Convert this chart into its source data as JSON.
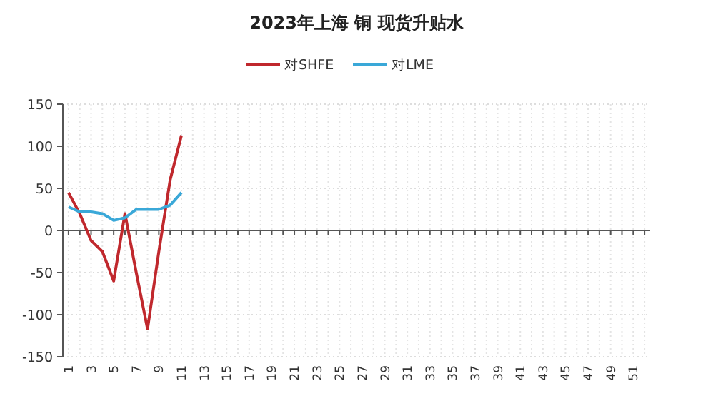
{
  "chart_data": {
    "type": "line",
    "title": "2023年上海 铜 现货升贴水",
    "categories": [
      "1",
      null,
      "3",
      null,
      "5",
      null,
      "7",
      null,
      "9",
      null,
      "11",
      null,
      "13",
      null,
      "15",
      null,
      "17",
      null,
      "19",
      null,
      "21",
      null,
      "23",
      null,
      "25",
      null,
      "27",
      null,
      "29",
      null,
      "31",
      null,
      "33",
      null,
      "35",
      null,
      "37",
      null,
      "39",
      null,
      "41",
      null,
      "43",
      null,
      "45",
      null,
      "47",
      null,
      "49",
      null,
      "51",
      null
    ],
    "series": [
      {
        "name": "对SHFE",
        "color": "#c0282d",
        "values": [
          45,
          20,
          -12,
          -25,
          -60,
          20,
          -50,
          -117,
          -25,
          60,
          113,
          null,
          null,
          null,
          null,
          null,
          null,
          null,
          null,
          null,
          null,
          null,
          null,
          null,
          null,
          null,
          null,
          null,
          null,
          null,
          null,
          null,
          null,
          null,
          null,
          null,
          null,
          null,
          null,
          null,
          null,
          null,
          null,
          null,
          null,
          null,
          null,
          null,
          null,
          null,
          null,
          null
        ]
      },
      {
        "name": "对LME",
        "color": "#3aa8d8",
        "values": [
          28,
          22,
          22,
          20,
          12,
          15,
          25,
          25,
          25,
          30,
          45,
          null,
          null,
          null,
          null,
          null,
          null,
          null,
          null,
          null,
          null,
          null,
          null,
          null,
          null,
          null,
          null,
          null,
          null,
          null,
          null,
          null,
          null,
          null,
          null,
          null,
          null,
          null,
          null,
          null,
          null,
          null,
          null,
          null,
          null,
          null,
          null,
          null,
          null,
          null,
          null,
          null
        ]
      }
    ],
    "ylim": [
      -150,
      150
    ],
    "yticks": [
      -150,
      -100,
      -50,
      0,
      50,
      100,
      150
    ],
    "grid": true,
    "legend": "top",
    "marker": "none",
    "line_style": "solid"
  }
}
